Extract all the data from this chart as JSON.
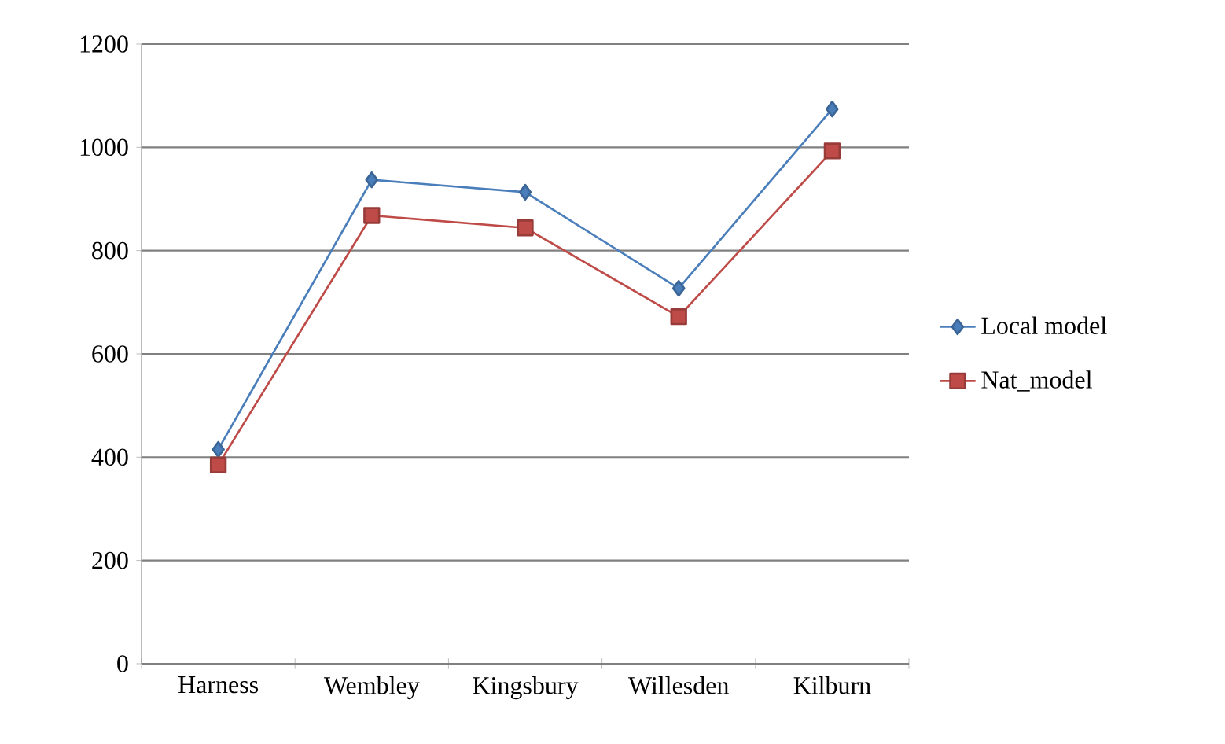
{
  "chart_data": {
    "type": "line",
    "categories": [
      "Harness",
      "Wembley",
      "Kingsbury",
      "Willesden",
      "Kilburn"
    ],
    "series": [
      {
        "name": "Local model",
        "color": "#4a7ebb",
        "marker": "diamond",
        "values": [
          415,
          937,
          913,
          727,
          1074
        ]
      },
      {
        "name": "Nat_model",
        "color": "#be4b48",
        "marker": "square",
        "values": [
          385,
          868,
          844,
          672,
          993
        ]
      }
    ],
    "ylim": [
      0,
      1200
    ],
    "yticks": [
      0,
      200,
      400,
      600,
      800,
      1000,
      1200
    ],
    "grid": "y",
    "legend": "right",
    "line_style": "solid"
  }
}
